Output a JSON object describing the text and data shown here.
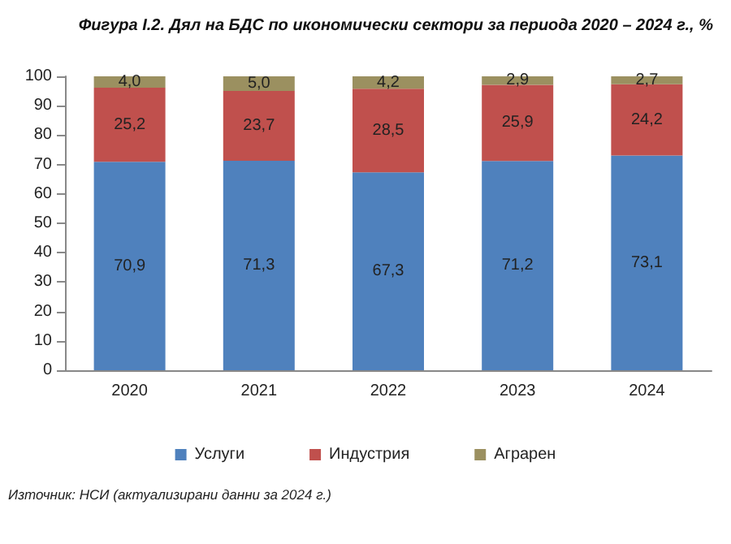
{
  "chart_data": {
    "type": "bar",
    "title": "Фигура I.2. Дял на БДС по икономически сектори за периода 2020 – 2024 г., %",
    "categories": [
      "2020",
      "2021",
      "2022",
      "2023",
      "2024"
    ],
    "stacked": true,
    "series": [
      {
        "name": "Услуги",
        "color": "#4f81bd",
        "values": [
          70.9,
          71.3,
          67.3,
          71.2,
          73.1
        ],
        "value_labels": [
          "70,9",
          "71,3",
          "67,3",
          "71,2",
          "73,1"
        ]
      },
      {
        "name": "Индустрия",
        "color": "#c0504d",
        "values": [
          25.2,
          23.7,
          28.5,
          25.9,
          24.2
        ],
        "value_labels": [
          "25,2",
          "23,7",
          "28,5",
          "25,9",
          "24,2"
        ]
      },
      {
        "name": "Аграрен",
        "color": "#9b9060",
        "values": [
          4.0,
          5.0,
          4.2,
          2.9,
          2.7
        ],
        "value_labels": [
          "4,0",
          "5,0",
          "4,2",
          "2,9",
          "2,7"
        ]
      }
    ],
    "ylim": [
      0,
      100
    ],
    "yticks": [
      0,
      10,
      20,
      30,
      40,
      50,
      60,
      70,
      80,
      90,
      100
    ],
    "grid": false,
    "legend": "bottom",
    "annotations": [
      "Източник: НСИ (актуализирани данни за 2024 г.)"
    ]
  }
}
